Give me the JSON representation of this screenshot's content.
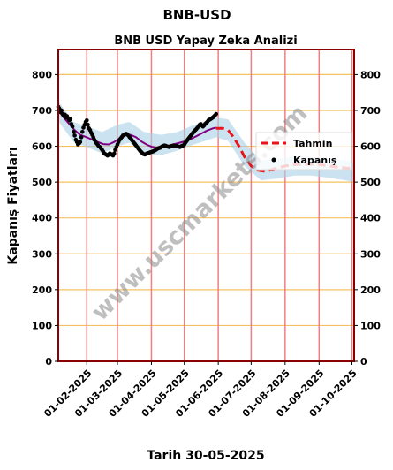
{
  "page": {
    "title": "BNB-USD",
    "subtitle": "BNB USD Yapay Zeka Analizi",
    "xlabel": "Tarih 30-05-2025",
    "watermark": "www.uscmarkets.com"
  },
  "chart_data": {
    "type": "line",
    "title": "BNB USD Yapay Zeka Analizi",
    "ylabel": "Kapanış Fiyatları",
    "xlabel": "Tarih 30-05-2025",
    "ylim": [
      0,
      870
    ],
    "yticks": [
      0,
      100,
      200,
      300,
      400,
      500,
      600,
      700,
      800
    ],
    "xlim": [
      "2025-01-06",
      "2025-10-03"
    ],
    "xticks": [
      "2025-02-01",
      "2025-03-01",
      "2025-04-01",
      "2025-05-01",
      "2025-06-01",
      "2025-07-01",
      "2025-08-01",
      "2025-09-01",
      "2025-10-01"
    ],
    "xtick_labels": [
      "01-02-2025",
      "01-03-2025",
      "01-04-2025",
      "01-05-2025",
      "01-06-2025",
      "01-07-2025",
      "01-08-2025",
      "01-09-2025",
      "01-10-2025"
    ],
    "grid": true,
    "legend_position": "right",
    "colors": {
      "forecast": "#e8141c",
      "close": "#000000",
      "moving_average": "#800080",
      "band": "#a8d0e6",
      "vgrid": "#f08080",
      "hgrid": "#f5c060",
      "frame": "#8b0000"
    },
    "series": [
      {
        "name": "Tahmin",
        "style": "dashed",
        "points": [
          [
            "2025-05-30",
            650
          ],
          [
            "2025-06-05",
            650
          ],
          [
            "2025-06-10",
            645
          ],
          [
            "2025-06-15",
            625
          ],
          [
            "2025-06-20",
            600
          ],
          [
            "2025-06-25",
            570
          ],
          [
            "2025-07-01",
            545
          ],
          [
            "2025-07-07",
            533
          ],
          [
            "2025-07-14",
            530
          ],
          [
            "2025-07-21",
            536
          ],
          [
            "2025-08-01",
            545
          ],
          [
            "2025-08-10",
            549
          ],
          [
            "2025-08-20",
            550
          ],
          [
            "2025-09-01",
            549
          ],
          [
            "2025-09-10",
            545
          ],
          [
            "2025-09-20",
            541
          ],
          [
            "2025-10-03",
            537
          ]
        ]
      },
      {
        "name": "Kapanış",
        "style": "points",
        "points": [
          [
            "2025-01-06",
            710
          ],
          [
            "2025-01-07",
            705
          ],
          [
            "2025-01-08",
            695
          ],
          [
            "2025-01-09",
            700
          ],
          [
            "2025-01-10",
            690
          ],
          [
            "2025-01-11",
            685
          ],
          [
            "2025-01-12",
            688
          ],
          [
            "2025-01-13",
            680
          ],
          [
            "2025-01-14",
            684
          ],
          [
            "2025-01-15",
            678
          ],
          [
            "2025-01-16",
            672
          ],
          [
            "2025-01-17",
            675
          ],
          [
            "2025-01-18",
            662
          ],
          [
            "2025-01-19",
            655
          ],
          [
            "2025-01-20",
            640
          ],
          [
            "2025-01-21",
            630
          ],
          [
            "2025-01-22",
            618
          ],
          [
            "2025-01-23",
            612
          ],
          [
            "2025-01-24",
            605
          ],
          [
            "2025-01-25",
            608
          ],
          [
            "2025-01-26",
            612
          ],
          [
            "2025-01-27",
            625
          ],
          [
            "2025-01-28",
            640
          ],
          [
            "2025-01-29",
            652
          ],
          [
            "2025-01-30",
            660
          ],
          [
            "2025-01-31",
            668
          ],
          [
            "2025-02-01",
            672
          ],
          [
            "2025-02-02",
            660
          ],
          [
            "2025-02-03",
            650
          ],
          [
            "2025-02-04",
            645
          ],
          [
            "2025-02-05",
            638
          ],
          [
            "2025-02-06",
            632
          ],
          [
            "2025-02-07",
            625
          ],
          [
            "2025-02-08",
            618
          ],
          [
            "2025-02-09",
            612
          ],
          [
            "2025-02-10",
            608
          ],
          [
            "2025-02-11",
            604
          ],
          [
            "2025-02-12",
            600
          ],
          [
            "2025-02-13",
            598
          ],
          [
            "2025-02-14",
            594
          ],
          [
            "2025-02-15",
            590
          ],
          [
            "2025-02-16",
            585
          ],
          [
            "2025-02-17",
            580
          ],
          [
            "2025-02-18",
            578
          ],
          [
            "2025-02-19",
            576
          ],
          [
            "2025-02-20",
            574
          ],
          [
            "2025-02-21",
            577
          ],
          [
            "2025-02-22",
            580
          ],
          [
            "2025-02-23",
            578
          ],
          [
            "2025-02-24",
            576
          ],
          [
            "2025-02-25",
            574
          ],
          [
            "2025-02-26",
            580
          ],
          [
            "2025-02-27",
            590
          ],
          [
            "2025-02-28",
            598
          ],
          [
            "2025-03-01",
            605
          ],
          [
            "2025-03-02",
            612
          ],
          [
            "2025-03-03",
            618
          ],
          [
            "2025-03-04",
            622
          ],
          [
            "2025-03-05",
            626
          ],
          [
            "2025-03-06",
            630
          ],
          [
            "2025-03-07",
            632
          ],
          [
            "2025-03-08",
            634
          ],
          [
            "2025-03-09",
            635
          ],
          [
            "2025-03-10",
            633
          ],
          [
            "2025-03-11",
            630
          ],
          [
            "2025-03-12",
            626
          ],
          [
            "2025-03-13",
            622
          ],
          [
            "2025-03-14",
            618
          ],
          [
            "2025-03-15",
            614
          ],
          [
            "2025-03-16",
            610
          ],
          [
            "2025-03-17",
            606
          ],
          [
            "2025-03-18",
            602
          ],
          [
            "2025-03-19",
            598
          ],
          [
            "2025-03-20",
            594
          ],
          [
            "2025-03-21",
            590
          ],
          [
            "2025-03-22",
            586
          ],
          [
            "2025-03-23",
            583
          ],
          [
            "2025-03-24",
            580
          ],
          [
            "2025-03-25",
            578
          ],
          [
            "2025-03-26",
            577
          ],
          [
            "2025-03-27",
            578
          ],
          [
            "2025-03-28",
            580
          ],
          [
            "2025-03-29",
            581
          ],
          [
            "2025-03-30",
            582
          ],
          [
            "2025-03-31",
            583
          ],
          [
            "2025-04-01",
            584
          ],
          [
            "2025-04-02",
            585
          ],
          [
            "2025-04-03",
            586
          ],
          [
            "2025-04-04",
            588
          ],
          [
            "2025-04-05",
            590
          ],
          [
            "2025-04-06",
            592
          ],
          [
            "2025-04-07",
            594
          ],
          [
            "2025-04-08",
            595
          ],
          [
            "2025-04-09",
            596
          ],
          [
            "2025-04-10",
            598
          ],
          [
            "2025-04-11",
            600
          ],
          [
            "2025-04-12",
            601
          ],
          [
            "2025-04-13",
            602
          ],
          [
            "2025-04-14",
            601
          ],
          [
            "2025-04-15",
            600
          ],
          [
            "2025-04-16",
            599
          ],
          [
            "2025-04-17",
            598
          ],
          [
            "2025-04-18",
            599
          ],
          [
            "2025-04-19",
            600
          ],
          [
            "2025-04-20",
            601
          ],
          [
            "2025-04-21",
            602
          ],
          [
            "2025-04-22",
            601
          ],
          [
            "2025-04-23",
            600
          ],
          [
            "2025-04-24",
            601
          ],
          [
            "2025-04-25",
            600
          ],
          [
            "2025-04-26",
            599
          ],
          [
            "2025-04-27",
            598
          ],
          [
            "2025-04-28",
            600
          ],
          [
            "2025-04-29",
            601
          ],
          [
            "2025-04-30",
            602
          ],
          [
            "2025-05-01",
            605
          ],
          [
            "2025-05-02",
            610
          ],
          [
            "2025-05-03",
            614
          ],
          [
            "2025-05-04",
            618
          ],
          [
            "2025-05-05",
            622
          ],
          [
            "2025-05-06",
            626
          ],
          [
            "2025-05-07",
            630
          ],
          [
            "2025-05-08",
            634
          ],
          [
            "2025-05-09",
            638
          ],
          [
            "2025-05-10",
            642
          ],
          [
            "2025-05-11",
            645
          ],
          [
            "2025-05-12",
            648
          ],
          [
            "2025-05-13",
            652
          ],
          [
            "2025-05-14",
            656
          ],
          [
            "2025-05-15",
            660
          ],
          [
            "2025-05-16",
            662
          ],
          [
            "2025-05-17",
            658
          ],
          [
            "2025-05-18",
            655
          ],
          [
            "2025-05-19",
            658
          ],
          [
            "2025-05-20",
            662
          ],
          [
            "2025-05-21",
            665
          ],
          [
            "2025-05-22",
            668
          ],
          [
            "2025-05-23",
            672
          ],
          [
            "2025-05-24",
            674
          ],
          [
            "2025-05-25",
            676
          ],
          [
            "2025-05-26",
            678
          ],
          [
            "2025-05-27",
            680
          ],
          [
            "2025-05-28",
            683
          ],
          [
            "2025-05-29",
            686
          ],
          [
            "2025-05-30",
            690
          ]
        ]
      },
      {
        "name": "",
        "style": "solid",
        "points": [
          [
            "2025-01-06",
            700
          ],
          [
            "2025-01-11",
            680
          ],
          [
            "2025-01-16",
            662
          ],
          [
            "2025-01-21",
            645
          ],
          [
            "2025-01-26",
            632
          ],
          [
            "2025-02-01",
            625
          ],
          [
            "2025-02-06",
            618
          ],
          [
            "2025-02-11",
            612
          ],
          [
            "2025-02-16",
            606
          ],
          [
            "2025-02-21",
            605
          ],
          [
            "2025-02-26",
            612
          ],
          [
            "2025-03-03",
            622
          ],
          [
            "2025-03-08",
            630
          ],
          [
            "2025-03-13",
            632
          ],
          [
            "2025-03-18",
            625
          ],
          [
            "2025-03-23",
            613
          ],
          [
            "2025-03-28",
            604
          ],
          [
            "2025-04-02",
            598
          ],
          [
            "2025-04-07",
            596
          ],
          [
            "2025-04-12",
            598
          ],
          [
            "2025-04-17",
            602
          ],
          [
            "2025-04-22",
            606
          ],
          [
            "2025-04-27",
            610
          ],
          [
            "2025-05-02",
            614
          ],
          [
            "2025-05-07",
            620
          ],
          [
            "2025-05-12",
            628
          ],
          [
            "2025-05-17",
            636
          ],
          [
            "2025-05-22",
            644
          ],
          [
            "2025-05-27",
            650
          ],
          [
            "2025-05-30",
            652
          ]
        ]
      }
    ],
    "band": {
      "points": [
        [
          "2025-01-06",
          670,
          725
        ],
        [
          "2025-01-20",
          612,
          668
        ],
        [
          "2025-02-01",
          598,
          655
        ],
        [
          "2025-02-15",
          580,
          640
        ],
        [
          "2025-03-01",
          600,
          660
        ],
        [
          "2025-03-12",
          610,
          668
        ],
        [
          "2025-03-25",
          578,
          640
        ],
        [
          "2025-04-10",
          575,
          632
        ],
        [
          "2025-04-25",
          588,
          640
        ],
        [
          "2025-05-10",
          605,
          660
        ],
        [
          "2025-05-30",
          625,
          680
        ],
        [
          "2025-06-10",
          615,
          675
        ],
        [
          "2025-06-25",
          545,
          610
        ],
        [
          "2025-07-10",
          505,
          560
        ],
        [
          "2025-07-25",
          510,
          565
        ],
        [
          "2025-08-10",
          518,
          572
        ],
        [
          "2025-08-25",
          518,
          570
        ],
        [
          "2025-09-10",
          512,
          566
        ],
        [
          "2025-09-25",
          505,
          560
        ],
        [
          "2025-10-03",
          500,
          555
        ]
      ]
    }
  }
}
